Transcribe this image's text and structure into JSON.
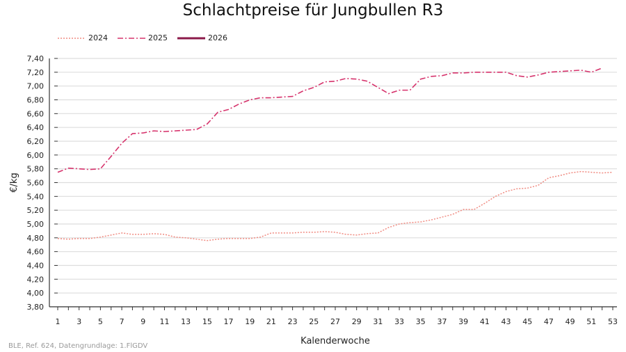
{
  "chart_data": {
    "type": "line",
    "title": "Schlachtpreise für Jungbullen R3",
    "xlabel": "Kalenderwoche",
    "ylabel": "€/kg",
    "ylim": [
      3.8,
      7.4
    ],
    "xlim": [
      1,
      53
    ],
    "yticks": [
      "3,80",
      "4,00",
      "4,20",
      "4,40",
      "4,60",
      "4,80",
      "5,00",
      "5,20",
      "5,40",
      "5,60",
      "5,80",
      "6,00",
      "6,20",
      "6,40",
      "6,60",
      "6,80",
      "7,00",
      "7,20",
      "7,40"
    ],
    "xticks": [
      "1",
      "3",
      "5",
      "7",
      "9",
      "11",
      "13",
      "15",
      "17",
      "19",
      "21",
      "23",
      "25",
      "27",
      "29",
      "31",
      "33",
      "35",
      "37",
      "39",
      "41",
      "43",
      "45",
      "47",
      "49",
      "51",
      "53"
    ],
    "grid": "horizontal",
    "legend_position": "top-left",
    "series": [
      {
        "name": "2024",
        "color": "#f08a80",
        "style": "dotted",
        "values": [
          4.79,
          4.78,
          4.79,
          4.79,
          4.81,
          4.84,
          4.87,
          4.85,
          4.85,
          4.86,
          4.85,
          4.81,
          4.8,
          4.78,
          4.76,
          4.78,
          4.79,
          4.79,
          4.79,
          4.81,
          4.87,
          4.87,
          4.87,
          4.88,
          4.88,
          4.89,
          4.88,
          4.85,
          4.84,
          4.86,
          4.87,
          4.95,
          5.0,
          5.02,
          5.03,
          5.06,
          5.1,
          5.14,
          5.21,
          5.21,
          5.3,
          5.4,
          5.47,
          5.51,
          5.52,
          5.56,
          5.67,
          5.7,
          5.74,
          5.76,
          5.75,
          5.74,
          5.75
        ]
      },
      {
        "name": "2025",
        "color": "#d6336c",
        "style": "dashdot",
        "values": [
          5.75,
          5.81,
          5.8,
          5.79,
          5.8,
          5.98,
          6.17,
          6.31,
          6.32,
          6.35,
          6.34,
          6.35,
          6.36,
          6.37,
          6.45,
          6.62,
          6.66,
          6.74,
          6.8,
          6.83,
          6.83,
          6.84,
          6.85,
          6.93,
          6.98,
          7.06,
          7.07,
          7.11,
          7.1,
          7.07,
          6.98,
          6.89,
          6.94,
          6.94,
          7.1,
          7.14,
          7.15,
          7.19,
          7.19,
          7.2,
          7.2,
          7.2,
          7.2,
          7.15,
          7.13,
          7.16,
          7.2,
          7.21,
          7.22,
          7.23,
          7.2,
          7.26
        ]
      },
      {
        "name": "2026",
        "color": "#8b1a4a",
        "style": "solid",
        "values": []
      }
    ]
  },
  "source": "BLE, Ref. 624, Datengrundlage: 1.FlGDV"
}
